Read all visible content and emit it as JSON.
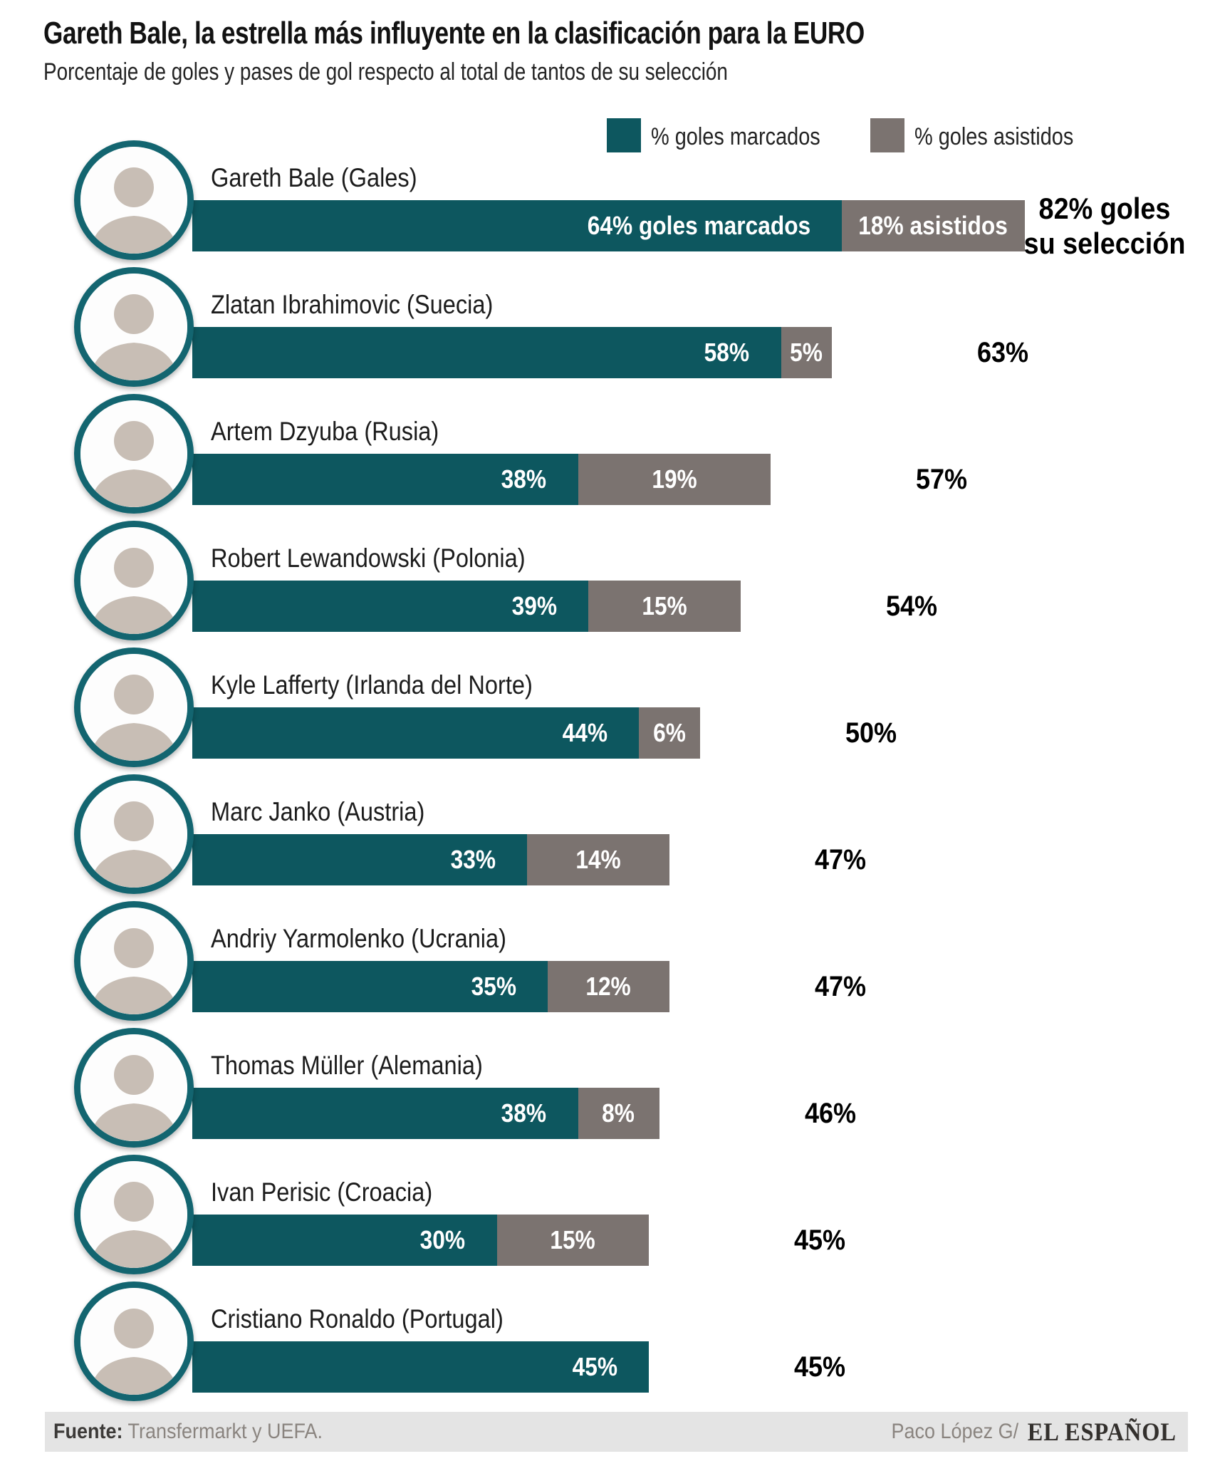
{
  "header": {
    "title": "Gareth Bale, la estrella más influyente en la clasificación para la EURO",
    "subtitle": "Porcentaje de goles y pases de gol respecto al total de tantos de su selección"
  },
  "legend": {
    "scored_label": "% goles marcados",
    "assisted_label": "% goles asistidos"
  },
  "colors": {
    "scored_teal": "#0D575F",
    "assisted_gray": "#7B7370",
    "photo_ring": "#136570",
    "footer_bg": "#E4E4E4"
  },
  "players": [
    {
      "name": "Gareth Bale (Gales)",
      "scored": 64,
      "assisted": 18,
      "total": 82,
      "scored_label": "64% goles marcados",
      "assisted_label": "18% asistidos",
      "total_label": "82% goles\nsu selección",
      "total_align": "right"
    },
    {
      "name": "Zlatan Ibrahimovic (Suecia)",
      "scored": 58,
      "assisted": 5,
      "total": 63,
      "scored_label": "58%",
      "assisted_label": "5%",
      "total_label": "63%"
    },
    {
      "name": "Artem Dzyuba (Rusia)",
      "scored": 38,
      "assisted": 19,
      "total": 57,
      "scored_label": "38%",
      "assisted_label": "19%",
      "total_label": "57%"
    },
    {
      "name": "Robert Lewandowski (Polonia)",
      "scored": 39,
      "assisted": 15,
      "total": 54,
      "scored_label": "39%",
      "assisted_label": "15%",
      "total_label": "54%"
    },
    {
      "name": "Kyle Lafferty (Irlanda del Norte)",
      "scored": 44,
      "assisted": 6,
      "total": 50,
      "scored_label": "44%",
      "assisted_label": "6%",
      "total_label": "50%"
    },
    {
      "name": "Marc Janko (Austria)",
      "scored": 33,
      "assisted": 14,
      "total": 47,
      "scored_label": "33%",
      "assisted_label": "14%",
      "total_label": "47%"
    },
    {
      "name": "Andriy Yarmolenko (Ucrania)",
      "scored": 35,
      "assisted": 12,
      "total": 47,
      "scored_label": "35%",
      "assisted_label": "12%",
      "total_label": "47%"
    },
    {
      "name": "Thomas Müller (Alemania)",
      "scored": 38,
      "assisted": 8,
      "total": 46,
      "scored_label": "38%",
      "assisted_label": "8%",
      "total_label": "46%"
    },
    {
      "name": "Ivan Perisic (Croacia)",
      "scored": 30,
      "assisted": 15,
      "total": 45,
      "scored_label": "30%",
      "assisted_label": "15%",
      "total_label": "45%"
    },
    {
      "name": "Cristiano Ronaldo (Portugal)",
      "scored": 45,
      "assisted": 0,
      "total": 45,
      "scored_label": "45%",
      "assisted_label": "",
      "total_label": "45%"
    }
  ],
  "footer": {
    "source_label": "Fuente:",
    "source_value": "Transfermarkt y UEFA.",
    "credit": "Paco López G/",
    "brand": "EL ESPAÑOL"
  },
  "chart_data": {
    "type": "bar",
    "orientation": "horizontal_stacked",
    "title": "Gareth Bale, la estrella más influyente en la clasificación para la EURO",
    "subtitle": "Porcentaje de goles y pases de gol respecto al total de tantos de su selección",
    "categories": [
      "Gareth Bale (Gales)",
      "Zlatan Ibrahimovic (Suecia)",
      "Artem Dzyuba (Rusia)",
      "Robert Lewandowski (Polonia)",
      "Kyle Lafferty (Irlanda del Norte)",
      "Marc Janko (Austria)",
      "Andriy Yarmolenko (Ucrania)",
      "Thomas Müller (Alemania)",
      "Ivan Perisic (Croacia)",
      "Cristiano Ronaldo (Portugal)"
    ],
    "series": [
      {
        "name": "% goles marcados",
        "color": "#0D575F",
        "values": [
          64,
          58,
          38,
          39,
          44,
          33,
          35,
          38,
          30,
          45
        ]
      },
      {
        "name": "% goles asistidos",
        "color": "#7B7370",
        "values": [
          18,
          5,
          19,
          15,
          6,
          14,
          12,
          8,
          15,
          0
        ]
      }
    ],
    "totals": [
      82,
      63,
      57,
      54,
      50,
      47,
      47,
      46,
      45,
      45
    ],
    "unit": "%",
    "xlim": [
      0,
      100
    ],
    "value_labels": true,
    "legend_position": "top",
    "grid": false
  }
}
